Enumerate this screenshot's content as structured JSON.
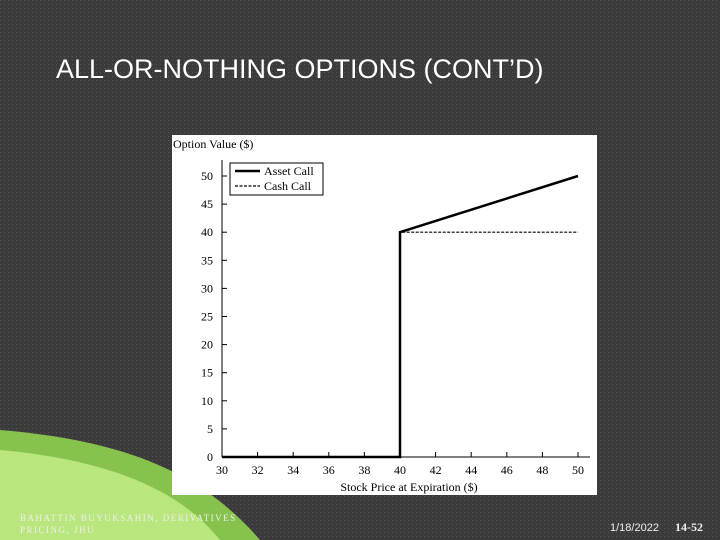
{
  "slide_title": "ALL-OR-NOTHING OPTIONS (CONT’D)",
  "footer": {
    "author": [
      "BAHATTIN BUYUKSAHIN, DERIVATIVES",
      "PRICING, JHU"
    ],
    "date": "1/18/2022",
    "page": "14-52"
  },
  "chart_data": {
    "type": "line",
    "y_label": "Option Value ($)",
    "x_label": "Stock Price at Expiration ($)",
    "x": [
      30,
      40,
      40,
      50
    ],
    "series": [
      {
        "name": "Asset Call",
        "color": "#000000",
        "style": "solid",
        "values": [
          0,
          0,
          40,
          50
        ]
      },
      {
        "name": "Cash Call",
        "color": "#000000",
        "style": "dashed",
        "values": [
          0,
          0,
          40,
          40
        ]
      }
    ],
    "xlim": [
      30,
      50
    ],
    "xticks": [
      30,
      32,
      34,
      36,
      38,
      40,
      42,
      44,
      46,
      48,
      50
    ],
    "ylim": [
      0,
      50
    ],
    "yticks": [
      0,
      5,
      10,
      15,
      20,
      25,
      30,
      35,
      40,
      45,
      50
    ],
    "grid": false,
    "legend": "top-left"
  }
}
